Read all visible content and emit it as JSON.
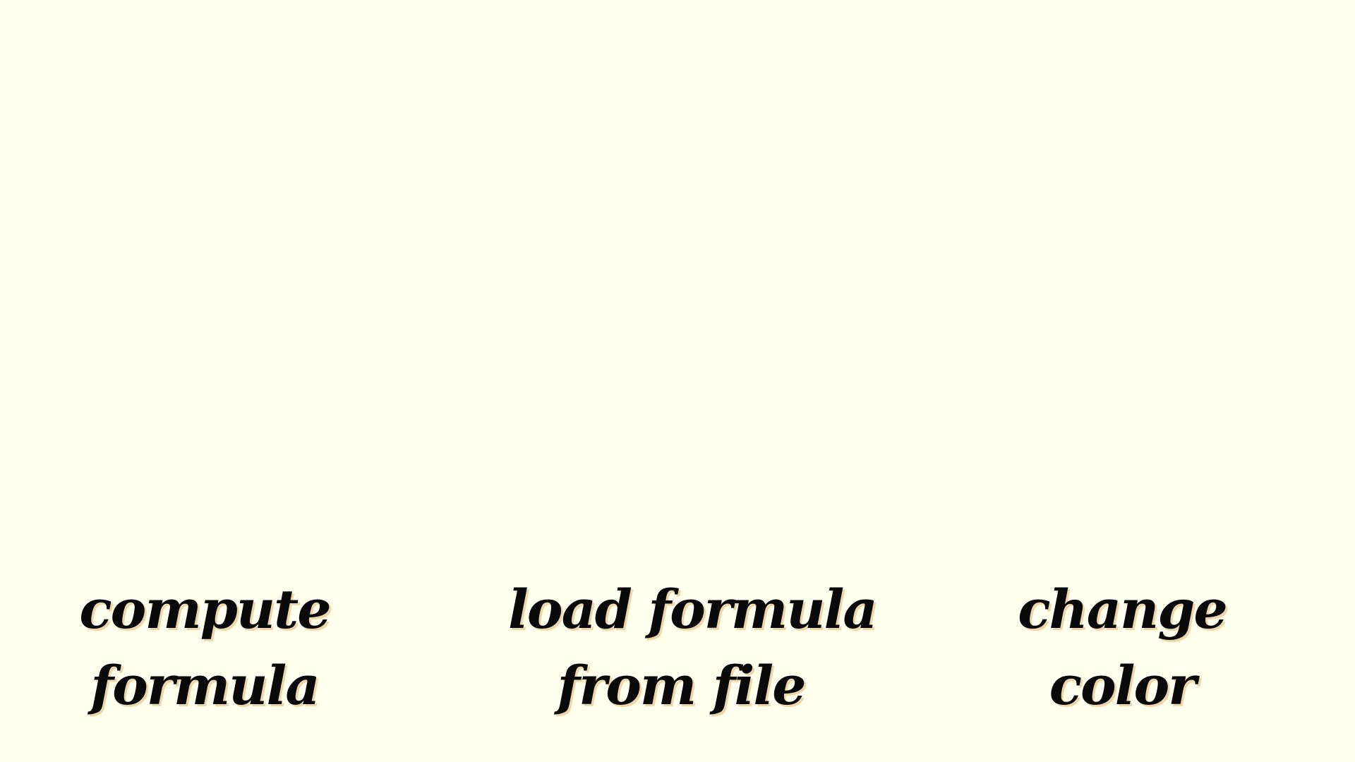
{
  "buttons": [
    {
      "id": "compute",
      "lines": [
        "compute",
        "formula"
      ]
    },
    {
      "id": "load",
      "lines": [
        "load formula",
        "from file"
      ]
    },
    {
      "id": "color",
      "lines": [
        "change",
        "color"
      ]
    }
  ],
  "colors": {
    "background": "#FFFFEE",
    "text": "#0A0A0A",
    "text_shadow": "#EFD6A8"
  }
}
